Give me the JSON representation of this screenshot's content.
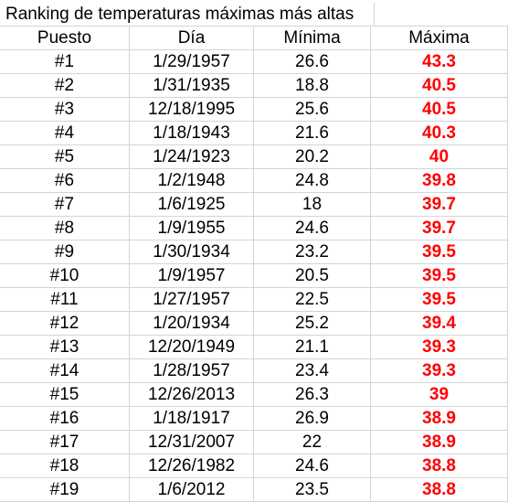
{
  "title": "Ranking de temperaturas máximas más altas",
  "headers": [
    "Puesto",
    "Día",
    "Mínima",
    "Máxima"
  ],
  "rows": [
    {
      "rank": "#1",
      "day": "1/29/1957",
      "min": "26.6",
      "max": "43.3"
    },
    {
      "rank": "#2",
      "day": "1/31/1935",
      "min": "18.8",
      "max": "40.5"
    },
    {
      "rank": "#3",
      "day": "12/18/1995",
      "min": "25.6",
      "max": "40.5"
    },
    {
      "rank": "#4",
      "day": "1/18/1943",
      "min": "21.6",
      "max": "40.3"
    },
    {
      "rank": "#5",
      "day": "1/24/1923",
      "min": "20.2",
      "max": "40"
    },
    {
      "rank": "#6",
      "day": "1/2/1948",
      "min": "24.8",
      "max": "39.8"
    },
    {
      "rank": "#7",
      "day": "1/6/1925",
      "min": "18",
      "max": "39.7"
    },
    {
      "rank": "#8",
      "day": "1/9/1955",
      "min": "24.6",
      "max": "39.7"
    },
    {
      "rank": "#9",
      "day": "1/30/1934",
      "min": "23.2",
      "max": "39.5"
    },
    {
      "rank": "#10",
      "day": "1/9/1957",
      "min": "20.5",
      "max": "39.5"
    },
    {
      "rank": "#11",
      "day": "1/27/1957",
      "min": "22.5",
      "max": "39.5"
    },
    {
      "rank": "#12",
      "day": "1/20/1934",
      "min": "25.2",
      "max": "39.4"
    },
    {
      "rank": "#13",
      "day": "12/20/1949",
      "min": "21.1",
      "max": "39.3"
    },
    {
      "rank": "#14",
      "day": "1/28/1957",
      "min": "23.4",
      "max": "39.3"
    },
    {
      "rank": "#15",
      "day": "12/26/2013",
      "min": "26.3",
      "max": "39"
    },
    {
      "rank": "#16",
      "day": "1/18/1917",
      "min": "26.9",
      "max": "38.9"
    },
    {
      "rank": "#17",
      "day": "12/31/2007",
      "min": "22",
      "max": "38.9"
    },
    {
      "rank": "#18",
      "day": "12/26/1982",
      "min": "24.6",
      "max": "38.8"
    },
    {
      "rank": "#19",
      "day": "1/6/2012",
      "min": "23.5",
      "max": "38.8"
    }
  ],
  "colors": {
    "max_value": "#ff0000",
    "gridline": "#d4d4d4"
  }
}
